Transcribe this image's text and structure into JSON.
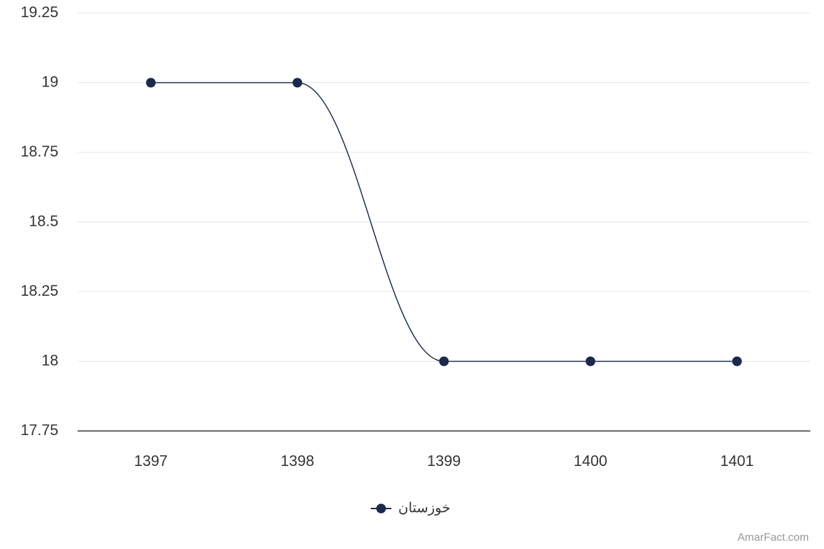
{
  "chart_data": {
    "type": "line",
    "categories": [
      "1397",
      "1398",
      "1399",
      "1400",
      "1401"
    ],
    "series": [
      {
        "name": "خوزستان",
        "color": "#1b2a4c",
        "values": [
          19,
          19,
          18,
          18,
          18
        ]
      }
    ],
    "ylim": [
      17.75,
      19.25
    ],
    "yticks": [
      17.75,
      18,
      18.25,
      18.5,
      18.75,
      19,
      19.25
    ],
    "grid": true,
    "smooth": true,
    "legend": "bottom",
    "credit": "AmarFact.com"
  }
}
